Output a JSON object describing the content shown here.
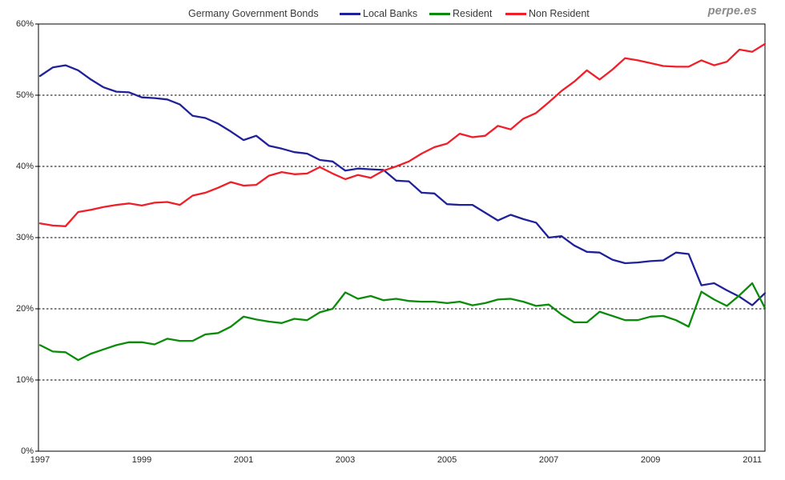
{
  "header": {
    "title": "Germany Government Bonds",
    "legend": [
      {
        "label": "Local Banks",
        "color": "#1F2199"
      },
      {
        "label": "Resident",
        "color": "#0A8C0A"
      },
      {
        "label": "Non Resident",
        "color": "#F01E28"
      }
    ],
    "watermark": "perpe.es"
  },
  "axes": {
    "y_tick_labels": [
      "0%",
      "10%",
      "20%",
      "30%",
      "40%",
      "50%",
      "60%"
    ],
    "x_tick_labels": [
      "1997",
      "1999",
      "2001",
      "2003",
      "2005",
      "2007",
      "2009",
      "2011"
    ]
  },
  "chart_data": {
    "type": "line",
    "title": "Germany Government Bonds",
    "frequency": "quarterly",
    "grid": "horizontal-dashed",
    "legend_position": "top",
    "ylim": [
      0,
      60
    ],
    "y_tick_interval": 10,
    "x_tick_years": [
      1997,
      1999,
      2001,
      2003,
      2005,
      2007,
      2009,
      2011
    ],
    "categories": [
      "1997 Q1",
      "1997 Q2",
      "1997 Q3",
      "1997 Q4",
      "1998 Q1",
      "1998 Q2",
      "1998 Q3",
      "1998 Q4",
      "1999 Q1",
      "1999 Q2",
      "1999 Q3",
      "1999 Q4",
      "2000 Q1",
      "2000 Q2",
      "2000 Q3",
      "2000 Q4",
      "2001 Q1",
      "2001 Q2",
      "2001 Q3",
      "2001 Q4",
      "2002 Q1",
      "2002 Q2",
      "2002 Q3",
      "2002 Q4",
      "2003 Q1",
      "2003 Q2",
      "2003 Q3",
      "2003 Q4",
      "2004 Q1",
      "2004 Q2",
      "2004 Q3",
      "2004 Q4",
      "2005 Q1",
      "2005 Q2",
      "2005 Q3",
      "2005 Q4",
      "2006 Q1",
      "2006 Q2",
      "2006 Q3",
      "2006 Q4",
      "2007 Q1",
      "2007 Q2",
      "2007 Q3",
      "2007 Q4",
      "2008 Q1",
      "2008 Q2",
      "2008 Q3",
      "2008 Q4",
      "2009 Q1",
      "2009 Q2",
      "2009 Q3",
      "2009 Q4",
      "2010 Q1",
      "2010 Q2",
      "2010 Q3",
      "2010 Q4",
      "2011 Q1",
      "2011 Q2"
    ],
    "series": [
      {
        "name": "Local Banks",
        "color": "#1F2199",
        "values": [
          52.7,
          53.9,
          54.2,
          53.5,
          52.2,
          51.1,
          50.5,
          50.4,
          49.7,
          49.6,
          49.4,
          48.7,
          47.1,
          46.8,
          46.0,
          44.9,
          43.7,
          44.3,
          42.9,
          42.5,
          42.0,
          41.8,
          40.9,
          40.7,
          39.4,
          39.7,
          39.6,
          39.5,
          38.0,
          37.9,
          36.3,
          36.2,
          34.7,
          34.6,
          34.6,
          33.5,
          32.4,
          33.2,
          32.6,
          32.1,
          30.0,
          30.2,
          28.9,
          28.0,
          27.9,
          26.9,
          26.4,
          26.5,
          26.7,
          26.8,
          27.9,
          27.7,
          23.3,
          23.6,
          22.6,
          21.7,
          20.5,
          22.2
        ]
      },
      {
        "name": "Resident",
        "color": "#0A8C0A",
        "values": [
          14.9,
          14.0,
          13.9,
          12.8,
          13.7,
          14.3,
          14.9,
          15.3,
          15.3,
          15.0,
          15.8,
          15.5,
          15.5,
          16.4,
          16.6,
          17.5,
          18.9,
          18.5,
          18.2,
          18.0,
          18.6,
          18.4,
          19.5,
          20.0,
          22.3,
          21.4,
          21.8,
          21.2,
          21.4,
          21.1,
          21.0,
          21.0,
          20.8,
          21.0,
          20.5,
          20.8,
          21.3,
          21.4,
          21.0,
          20.4,
          20.6,
          19.2,
          18.1,
          18.1,
          19.6,
          19.0,
          18.4,
          18.4,
          18.9,
          19.0,
          18.4,
          17.5,
          22.4,
          21.3,
          20.4,
          21.9,
          23.6,
          20.1
        ]
      },
      {
        "name": "Non Resident",
        "color": "#F01E28",
        "values": [
          32.0,
          31.7,
          31.6,
          33.6,
          33.9,
          34.3,
          34.6,
          34.8,
          34.5,
          34.9,
          35.0,
          34.6,
          35.9,
          36.3,
          37.0,
          37.8,
          37.3,
          37.4,
          38.7,
          39.2,
          38.9,
          39.0,
          39.9,
          39.0,
          38.2,
          38.8,
          38.4,
          39.4,
          40.0,
          40.7,
          41.8,
          42.7,
          43.2,
          44.6,
          44.1,
          44.3,
          45.7,
          45.2,
          46.7,
          47.5,
          49.0,
          50.6,
          51.9,
          53.5,
          52.2,
          53.6,
          55.2,
          54.9,
          54.5,
          54.1,
          54.0,
          54.0,
          54.9,
          54.2,
          54.7,
          56.4,
          56.1,
          57.2
        ]
      }
    ]
  }
}
